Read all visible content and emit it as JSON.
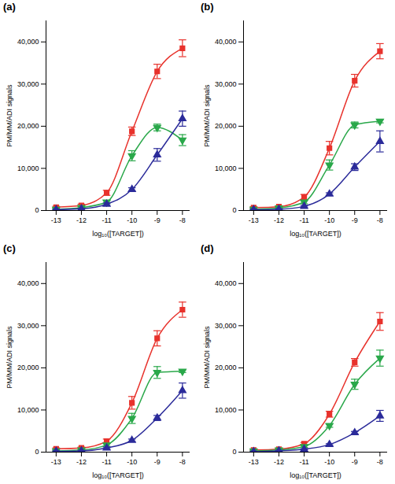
{
  "chart_data": [
    {
      "type": "line",
      "title": "(a)",
      "xlabel": "log₁₀([TARGET])",
      "ylabel": "PM/MM/ADI signals",
      "x": [
        -13,
        -12,
        -11,
        -10,
        -9,
        -8
      ],
      "xlim": [
        -13.4,
        -7.7
      ],
      "xticks": [
        -13,
        -12,
        -11,
        -10,
        -9,
        -8
      ],
      "ylim": [
        0,
        45000
      ],
      "yticks": [
        0,
        {
          "value": 10000,
          "label": "10,000"
        },
        {
          "value": 20000,
          "label": "20,000"
        },
        {
          "value": 30000,
          "label": "30,000"
        },
        {
          "value": 40000,
          "label": "40,000"
        }
      ],
      "grid": false,
      "series": [
        {
          "color": "#e8322c",
          "marker": "square",
          "values": [
            800,
            1200,
            4200,
            18800,
            33000,
            38500
          ],
          "errors": [
            200,
            300,
            600,
            1000,
            1700,
            2000
          ]
        },
        {
          "color": "#2aa84a",
          "marker": "triangle-down",
          "values": [
            300,
            700,
            2000,
            13000,
            19700,
            16700
          ],
          "errors": [
            100,
            200,
            400,
            1200,
            800,
            1300
          ]
        },
        {
          "color": "#2b2b9a",
          "marker": "triangle",
          "values": [
            200,
            400,
            1500,
            5000,
            13200,
            21800
          ],
          "errors": [
            100,
            100,
            300,
            400,
            1500,
            1800
          ]
        }
      ]
    },
    {
      "type": "line",
      "title": "(b)",
      "xlabel": "log₁₀([TARGET])",
      "ylabel": "PM/MM/ADI signals",
      "x": [
        -13,
        -12,
        -11,
        -10,
        -9,
        -8
      ],
      "xlim": [
        -13.4,
        -7.7
      ],
      "xticks": [
        -13,
        -12,
        -11,
        -10,
        -9,
        -8
      ],
      "ylim": [
        0,
        45000
      ],
      "yticks": [
        0,
        {
          "value": 10000,
          "label": "10,000"
        },
        {
          "value": 20000,
          "label": "20,000"
        },
        {
          "value": 30000,
          "label": "30,000"
        },
        {
          "value": 40000,
          "label": "40,000"
        }
      ],
      "grid": false,
      "series": [
        {
          "color": "#e8322c",
          "marker": "square",
          "values": [
            700,
            900,
            3200,
            14800,
            30800,
            37800
          ],
          "errors": [
            200,
            200,
            600,
            1600,
            1500,
            1800
          ]
        },
        {
          "color": "#2aa84a",
          "marker": "triangle-down",
          "values": [
            300,
            600,
            2000,
            10800,
            20300,
            21200
          ],
          "errors": [
            100,
            100,
            400,
            1200,
            700,
            400
          ]
        },
        {
          "color": "#2b2b9a",
          "marker": "triangle",
          "values": [
            200,
            300,
            1000,
            3900,
            10300,
            16400
          ],
          "errors": [
            100,
            100,
            200,
            300,
            800,
            2500
          ]
        }
      ]
    },
    {
      "type": "line",
      "title": "(c)",
      "xlabel": "log₁₀([TARGET])",
      "ylabel": "PM/MM/ADI signals",
      "x": [
        -13,
        -12,
        -11,
        -10,
        -9,
        -8
      ],
      "xlim": [
        -13.4,
        -7.7
      ],
      "xticks": [
        -13,
        -12,
        -11,
        -10,
        -9,
        -8
      ],
      "ylim": [
        0,
        45000
      ],
      "yticks": [
        0,
        {
          "value": 10000,
          "label": "10,000"
        },
        {
          "value": 20000,
          "label": "20,000"
        },
        {
          "value": 30000,
          "label": "30,000"
        },
        {
          "value": 40000,
          "label": "40,000"
        }
      ],
      "grid": false,
      "series": [
        {
          "color": "#e8322c",
          "marker": "square",
          "values": [
            800,
            1000,
            2600,
            11700,
            27000,
            33800
          ],
          "errors": [
            200,
            200,
            500,
            1500,
            1800,
            1800
          ]
        },
        {
          "color": "#2aa84a",
          "marker": "triangle-down",
          "values": [
            300,
            500,
            1700,
            8000,
            18900,
            19200
          ],
          "errors": [
            100,
            100,
            300,
            1200,
            1400,
            300
          ]
        },
        {
          "color": "#2b2b9a",
          "marker": "triangle",
          "values": [
            200,
            300,
            1000,
            2800,
            8100,
            14600
          ],
          "errors": [
            100,
            100,
            200,
            300,
            600,
            1800
          ]
        }
      ]
    },
    {
      "type": "line",
      "title": "(d)",
      "xlabel": "log₁₀([TARGET])",
      "ylabel": "PM/MM/ADI signals",
      "x": [
        -13,
        -12,
        -11,
        -10,
        -9,
        -8
      ],
      "xlim": [
        -13.4,
        -7.7
      ],
      "xticks": [
        -13,
        -12,
        -11,
        -10,
        -9,
        -8
      ],
      "ylim": [
        0,
        45000
      ],
      "yticks": [
        0,
        {
          "value": 10000,
          "label": "10,000"
        },
        {
          "value": 20000,
          "label": "20,000"
        },
        {
          "value": 30000,
          "label": "30,000"
        },
        {
          "value": 40000,
          "label": "40,000"
        }
      ],
      "grid": false,
      "series": [
        {
          "color": "#e8322c",
          "marker": "square",
          "values": [
            500,
            700,
            2000,
            9000,
            21300,
            31000
          ],
          "errors": [
            100,
            200,
            300,
            700,
            900,
            2100
          ]
        },
        {
          "color": "#2aa84a",
          "marker": "triangle-down",
          "values": [
            300,
            500,
            1300,
            6300,
            16100,
            22300
          ],
          "errors": [
            100,
            100,
            200,
            400,
            1200,
            1900
          ]
        },
        {
          "color": "#2b2b9a",
          "marker": "triangle",
          "values": [
            100,
            300,
            700,
            1800,
            4600,
            8600
          ],
          "errors": [
            100,
            100,
            100,
            200,
            300,
            1300
          ]
        }
      ]
    }
  ]
}
